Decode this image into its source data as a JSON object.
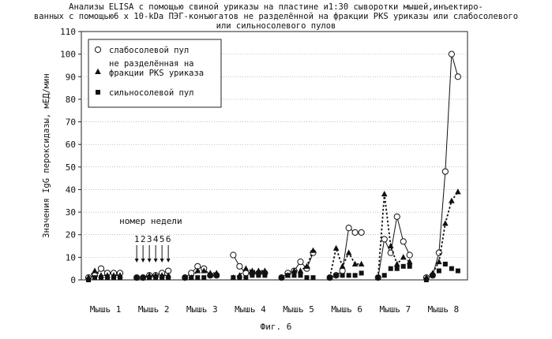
{
  "title_lines": [
    "Анализы ELISA с помощью свиной уриказы на пластине и1:30 сыворотки мышей,инъектиро-",
    "ванных с помощью6 x 10-kDa ПЭГ-конъюгатов не разделённой на фракции PKS уриказы или слабосолевого",
    "или сильносолевого пулов"
  ],
  "caption": "Фиг. 6",
  "chart_data": {
    "type": "line",
    "ylabel": "Значения IgG пероксидазы, мЕД/мин",
    "ylim": [
      0,
      110
    ],
    "yticks": [
      0,
      10,
      20,
      30,
      40,
      50,
      60,
      70,
      80,
      90,
      100,
      110
    ],
    "grid": true,
    "legend_position": "top-left",
    "categories": [
      "Мышь 1",
      "Мышь 2",
      "Мышь 3",
      "Мышь 4",
      "Мышь 5",
      "Мышь 6",
      "Мышь 7",
      "Мышь 8"
    ],
    "points_per_category": 6,
    "annotation": {
      "text": "номер недели",
      "weeks": [
        "1",
        "2",
        "3",
        "4",
        "5",
        "6"
      ],
      "category_index": 1
    },
    "series": [
      {
        "name": "слабосолевой пул",
        "marker": "circle",
        "line": "solid",
        "values": [
          [
            1,
            2,
            5,
            3,
            3,
            3
          ],
          [
            1,
            1,
            2,
            2,
            3,
            4
          ],
          [
            1,
            3,
            6,
            5,
            2,
            2
          ],
          [
            11,
            6,
            3,
            3,
            3,
            3
          ],
          [
            1,
            3,
            4,
            8,
            5,
            12
          ],
          [
            1,
            2,
            4,
            23,
            21,
            21
          ],
          [
            1,
            18,
            12,
            28,
            17,
            11
          ],
          [
            1,
            2,
            12,
            48,
            100,
            90
          ]
        ]
      },
      {
        "name": "не разделённая на фракции PKS уриказа",
        "marker": "triangle",
        "line": "dotted",
        "values": [
          [
            1,
            4,
            2,
            2,
            2,
            2
          ],
          [
            1,
            1,
            2,
            2,
            2,
            2
          ],
          [
            1,
            1,
            4,
            4,
            3,
            3
          ],
          [
            1,
            2,
            5,
            4,
            4,
            4
          ],
          [
            1,
            2,
            4,
            4,
            6,
            13
          ],
          [
            1,
            14,
            6,
            12,
            7,
            7
          ],
          [
            1,
            38,
            15,
            7,
            10,
            8
          ],
          [
            1,
            3,
            8,
            25,
            35,
            39
          ]
        ]
      },
      {
        "name": "сильносолевой пул",
        "marker": "square",
        "line": "none",
        "values": [
          [
            0,
            1,
            1,
            1,
            1,
            1
          ],
          [
            1,
            1,
            1,
            1,
            1,
            1
          ],
          [
            1,
            1,
            1,
            1,
            2,
            2
          ],
          [
            1,
            1,
            1,
            2,
            2,
            2
          ],
          [
            1,
            2,
            2,
            2,
            1,
            1
          ],
          [
            1,
            2,
            2,
            2,
            2,
            3
          ],
          [
            1,
            2,
            5,
            5,
            6,
            6
          ],
          [
            0,
            2,
            4,
            7,
            5,
            4
          ]
        ]
      }
    ]
  }
}
